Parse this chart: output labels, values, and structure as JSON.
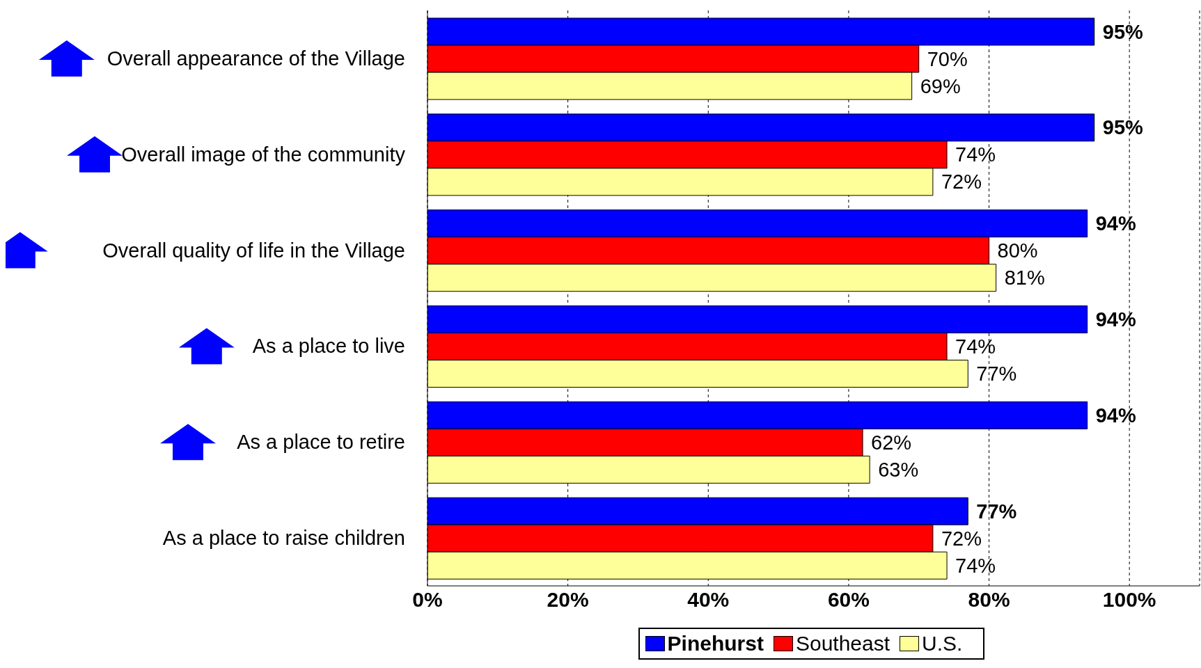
{
  "chart_data": {
    "type": "bar",
    "orientation": "horizontal",
    "categories": [
      "Overall appearance of the Village",
      "Overall image of the community",
      "Overall quality of life in the Village",
      "As a place to live",
      "As a place to retire",
      "As a place to raise children"
    ],
    "series": [
      {
        "name": "Pinehurst",
        "color": "#0000ff",
        "values": [
          95,
          95,
          94,
          94,
          94,
          77
        ],
        "value_labels": [
          "95%",
          "95%",
          "94%",
          "94%",
          "94%",
          "77%"
        ]
      },
      {
        "name": "Southeast",
        "color": "#ff0000",
        "values": [
          70,
          74,
          80,
          74,
          62,
          72
        ],
        "value_labels": [
          "70%",
          "74%",
          "80%",
          "74%",
          "62%",
          "72%"
        ]
      },
      {
        "name": "U.S.",
        "color": "#ffff99",
        "values": [
          69,
          72,
          81,
          77,
          63,
          74
        ],
        "value_labels": [
          "69%",
          "72%",
          "81%",
          "77%",
          "63%",
          "74%"
        ]
      }
    ],
    "xlim": [
      0,
      110
    ],
    "xticks": [
      {
        "value": 0,
        "label": "0%"
      },
      {
        "value": 20,
        "label": "20%"
      },
      {
        "value": 40,
        "label": "40%"
      },
      {
        "value": 60,
        "label": "60%"
      },
      {
        "value": 80,
        "label": "80%"
      },
      {
        "value": 100,
        "label": "100%"
      }
    ],
    "grid": "x",
    "legend": "bottom"
  }
}
